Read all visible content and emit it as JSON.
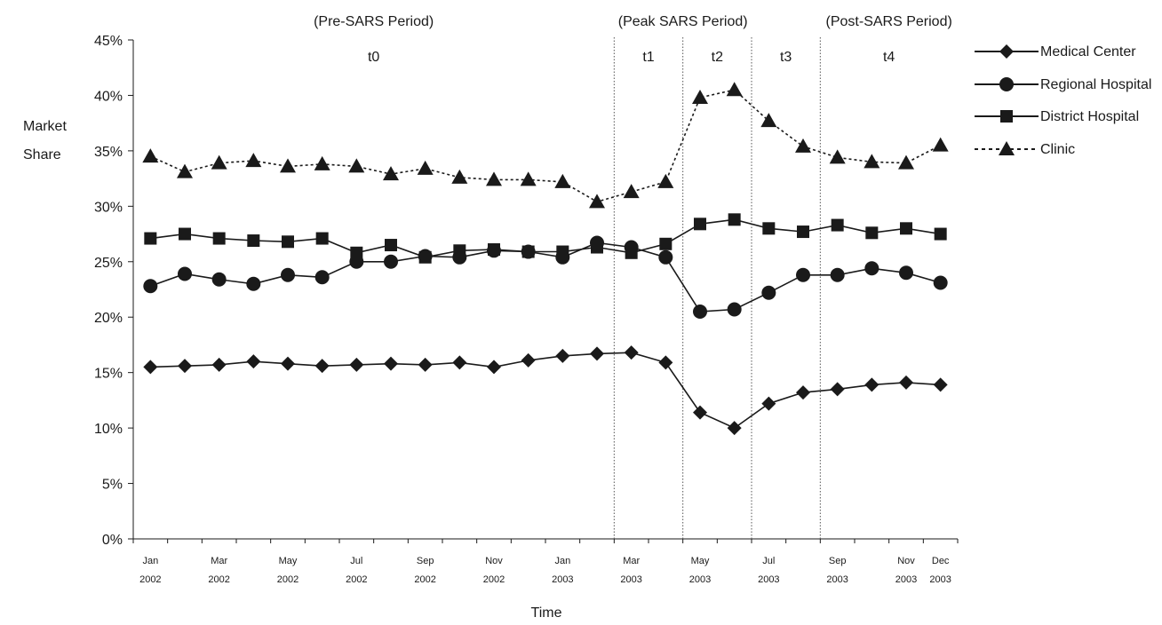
{
  "chart_data": {
    "type": "line",
    "xlabel": "Time",
    "ylabel_lines": [
      "Market",
      "Share"
    ],
    "ylim": [
      0,
      45
    ],
    "y_ticks": [
      "0%",
      "5%",
      "10%",
      "15%",
      "20%",
      "25%",
      "30%",
      "35%",
      "40%",
      "45%"
    ],
    "x": [
      "Jan 2002",
      "Feb 2002",
      "Mar 2002",
      "Apr 2002",
      "May 2002",
      "Jun 2002",
      "Jul 2002",
      "Aug 2002",
      "Sep 2002",
      "Oct 2002",
      "Nov 2002",
      "Dec 2002",
      "Jan 2003",
      "Feb 2003",
      "Mar 2003",
      "Apr 2003",
      "May 2003",
      "Jun 2003",
      "Jul 2003",
      "Aug 2003",
      "Sep 2003",
      "Oct 2003",
      "Nov 2003",
      "Dec 2003"
    ],
    "x_tick_labels": [
      {
        "x_index": 0,
        "line1": "Jan",
        "line2": "2002"
      },
      {
        "x_index": 2,
        "line1": "Mar",
        "line2": "2002"
      },
      {
        "x_index": 4,
        "line1": "May",
        "line2": "2002"
      },
      {
        "x_index": 6,
        "line1": "Jul",
        "line2": "2002"
      },
      {
        "x_index": 8,
        "line1": "Sep",
        "line2": "2002"
      },
      {
        "x_index": 10,
        "line1": "Nov",
        "line2": "2002"
      },
      {
        "x_index": 12,
        "line1": "Jan",
        "line2": "2003"
      },
      {
        "x_index": 14,
        "line1": "Mar",
        "line2": "2003"
      },
      {
        "x_index": 16,
        "line1": "May",
        "line2": "2003"
      },
      {
        "x_index": 18,
        "line1": "Jul",
        "line2": "2003"
      },
      {
        "x_index": 20,
        "line1": "Sep",
        "line2": "2003"
      },
      {
        "x_index": 22,
        "line1": "Nov",
        "line2": "2003"
      },
      {
        "x_index": 23,
        "line1": "Dec",
        "line2": "2003"
      }
    ],
    "series": [
      {
        "name": "Medical Center",
        "marker": "diamond",
        "dashed": false,
        "values": [
          15.5,
          15.6,
          15.7,
          16.0,
          15.8,
          15.6,
          15.7,
          15.8,
          15.7,
          15.9,
          15.5,
          16.1,
          16.5,
          16.7,
          16.8,
          15.9,
          11.4,
          10.0,
          12.2,
          13.2,
          13.5,
          13.9,
          14.1,
          13.9
        ]
      },
      {
        "name": "Regional Hospital",
        "marker": "circle",
        "dashed": false,
        "values": [
          22.8,
          23.9,
          23.4,
          23.0,
          23.8,
          23.6,
          25.0,
          25.0,
          25.5,
          25.4,
          26.0,
          25.9,
          25.4,
          26.7,
          26.3,
          25.4,
          20.5,
          20.7,
          22.2,
          23.8,
          23.8,
          24.4,
          24.0,
          23.1
        ]
      },
      {
        "name": "District Hospital",
        "marker": "square",
        "dashed": false,
        "values": [
          27.1,
          27.5,
          27.1,
          26.9,
          26.8,
          27.1,
          25.8,
          26.5,
          25.4,
          26.0,
          26.1,
          25.9,
          25.9,
          26.3,
          25.8,
          26.6,
          28.4,
          28.8,
          28.0,
          27.7,
          28.3,
          27.6,
          28.0,
          27.5
        ]
      },
      {
        "name": "Clinic",
        "marker": "triangle",
        "dashed": true,
        "values": [
          34.5,
          33.1,
          33.9,
          34.1,
          33.6,
          33.8,
          33.6,
          32.9,
          33.4,
          32.6,
          32.4,
          32.4,
          32.2,
          30.4,
          31.3,
          32.2,
          39.8,
          40.5,
          37.7,
          35.4,
          34.4,
          34.0,
          33.9,
          35.5
        ]
      }
    ],
    "phase_dividers_after_x_index": [
      13.5,
      15.5,
      17.5,
      19.5
    ],
    "period_labels": [
      {
        "text": "(Pre-SARS Period)",
        "center_x_index": 6.5
      },
      {
        "text": "(Peak SARS Period)",
        "center_x_index": 15.5
      },
      {
        "text": "(Post-SARS Period)",
        "center_x_index": 21.5
      }
    ],
    "phase_labels": [
      {
        "text": "t0",
        "center_x_index": 6.5
      },
      {
        "text": "t1",
        "center_x_index": 14.5
      },
      {
        "text": "t2",
        "center_x_index": 16.5
      },
      {
        "text": "t3",
        "center_x_index": 18.5
      },
      {
        "text": "t4",
        "center_x_index": 21.5
      }
    ],
    "grid": false,
    "legend_position": "right",
    "colors": {
      "line": "#1a1a1a",
      "divider": "#555555"
    }
  }
}
